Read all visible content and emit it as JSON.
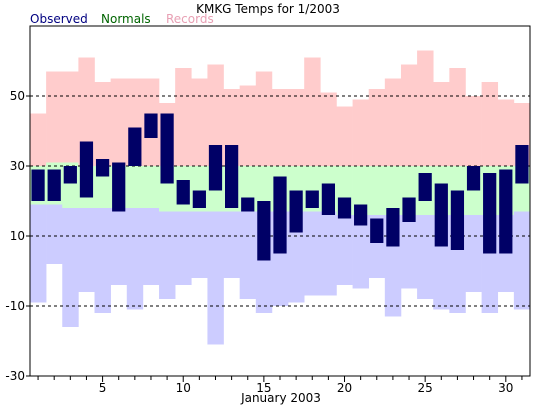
{
  "chart_data": {
    "type": "bar",
    "title": "KMKG Temps for 1/2003",
    "xlabel": "January 2003",
    "ylabel": "",
    "legend": [
      {
        "name": "Observed",
        "color": "#000080"
      },
      {
        "name": "Normals",
        "color": "#006400"
      },
      {
        "name": "Records",
        "color": "#e8a0b4"
      }
    ],
    "legend_placement": "top-left",
    "ylim": [
      -30,
      70
    ],
    "xlim": [
      0.5,
      31.5
    ],
    "y_ticks": [
      -30,
      -10,
      10,
      30,
      50
    ],
    "x_ticks": [
      5,
      10,
      15,
      20,
      25,
      30
    ],
    "grid": "dashed horizontal at y ticks",
    "colors": {
      "record_band": "#ffcccc",
      "normal_band": "#ccffcc",
      "record_low_band": "#ccccff",
      "observed": "#000066"
    },
    "days": [
      1,
      2,
      3,
      4,
      5,
      6,
      7,
      8,
      9,
      10,
      11,
      12,
      13,
      14,
      15,
      16,
      17,
      18,
      19,
      20,
      21,
      22,
      23,
      24,
      25,
      26,
      27,
      28,
      29,
      30,
      31
    ],
    "observed_high": [
      29,
      29,
      30,
      37,
      32,
      31,
      41,
      45,
      45,
      26,
      23,
      36,
      36,
      21,
      20,
      27,
      23,
      23,
      25,
      21,
      19,
      15,
      18,
      21,
      28,
      25,
      23,
      30,
      28,
      29,
      36
    ],
    "observed_low": [
      20,
      20,
      25,
      21,
      27,
      17,
      30,
      38,
      25,
      19,
      18,
      23,
      18,
      17,
      3,
      5,
      11,
      18,
      16,
      15,
      13,
      8,
      7,
      14,
      20,
      7,
      6,
      23,
      5,
      5,
      25
    ],
    "normal_high": [
      30,
      31,
      31,
      30,
      30,
      30,
      30,
      30,
      30,
      30,
      30,
      30,
      30,
      30,
      30,
      30,
      30,
      30,
      30,
      30,
      30,
      30,
      30,
      30,
      30,
      30,
      30,
      30,
      30,
      30,
      30
    ],
    "normal_low": [
      19,
      19,
      18,
      18,
      18,
      18,
      18,
      18,
      17,
      17,
      17,
      17,
      17,
      17,
      17,
      17,
      17,
      17,
      17,
      16,
      16,
      16,
      16,
      16,
      16,
      16,
      16,
      16,
      16,
      16,
      17
    ],
    "record_high": [
      45,
      57,
      57,
      61,
      54,
      55,
      55,
      55,
      48,
      58,
      55,
      59,
      52,
      53,
      57,
      52,
      52,
      61,
      51,
      47,
      49,
      52,
      55,
      59,
      63,
      54,
      58,
      50,
      54,
      49,
      48
    ],
    "record_low": [
      -9,
      2,
      -16,
      -6,
      -12,
      -4,
      -11,
      -4,
      -8,
      -4,
      -2,
      -21,
      -2,
      -8,
      -12,
      -10,
      -9,
      -7,
      -7,
      -4,
      -5,
      -2,
      -13,
      -5,
      -8,
      -11,
      -12,
      -6,
      -12,
      -6,
      -11
    ]
  }
}
